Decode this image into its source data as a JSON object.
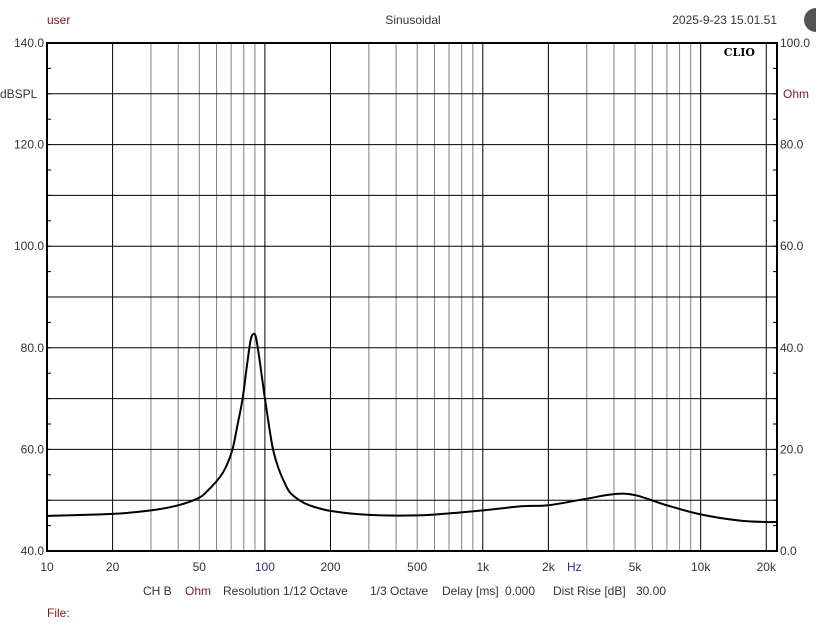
{
  "header": {
    "user": "user",
    "mode": "Sinusoidal",
    "datetime": "2025-9-23 15.01.51"
  },
  "logo": "CLIO",
  "footer": {
    "channel": "CH B",
    "unit": "Ohm",
    "resolution": "Resolution 1/12 Octave",
    "smoothing": "1/3 Octave",
    "delay_label": "Delay [ms]",
    "delay_value": "0.000",
    "dist_label": "Dist Rise [dB]",
    "dist_value": "30.00",
    "file_label": "File:"
  },
  "chart_data": {
    "type": "line",
    "title": "Sinusoidal",
    "xlabel": "Hz",
    "ylabel": "dBSPL",
    "y2label": "Ohm",
    "xscale": "log",
    "xlim": [
      10,
      22400
    ],
    "ylim": [
      40,
      140
    ],
    "y2lim": [
      0,
      100
    ],
    "grid": true,
    "x_ticks": [
      {
        "v": 10,
        "label": "10"
      },
      {
        "v": 20,
        "label": "20"
      },
      {
        "v": 50,
        "label": "50"
      },
      {
        "v": 100,
        "label": "100"
      },
      {
        "v": 200,
        "label": "200"
      },
      {
        "v": 500,
        "label": "500"
      },
      {
        "v": 1000,
        "label": "1k"
      },
      {
        "v": 2000,
        "label": "2k"
      },
      {
        "v": 5000,
        "label": "5k"
      },
      {
        "v": 10000,
        "label": "10k"
      },
      {
        "v": 20000,
        "label": "20k"
      }
    ],
    "y_ticks": [
      {
        "v": 140,
        "label": "140.0"
      },
      {
        "v": 120,
        "label": "120.0"
      },
      {
        "v": 100,
        "label": "100.0"
      },
      {
        "v": 80,
        "label": "80.0"
      },
      {
        "v": 60,
        "label": "60.0"
      },
      {
        "v": 40,
        "label": "40.0"
      }
    ],
    "y2_ticks": [
      {
        "v": 100,
        "label": "100.0"
      },
      {
        "v": 80,
        "label": "80.0"
      },
      {
        "v": 60,
        "label": "60.0"
      },
      {
        "v": 40,
        "label": "40.0"
      },
      {
        "v": 20,
        "label": "20.0"
      },
      {
        "v": 0,
        "label": "0.0"
      }
    ],
    "series": [
      {
        "name": "Impedance (Ohm)",
        "axis": "y2",
        "color": "#000000",
        "x": [
          10,
          20,
          30,
          40,
          50,
          55,
          62,
          67,
          71,
          75,
          79,
          83,
          86,
          88.5,
          91,
          95,
          100,
          105,
          109,
          115,
          122,
          130,
          144,
          160,
          200,
          300,
          500,
          700,
          1000,
          1500,
          2000,
          3000,
          4000,
          5000,
          7000,
          10000,
          15000,
          20000,
          22400
        ],
        "y": [
          6.9,
          7.3,
          8.0,
          9.0,
          10.5,
          12.0,
          14.5,
          17.0,
          20.0,
          25.0,
          30.0,
          37.0,
          41.5,
          42.7,
          42.0,
          37.0,
          30.0,
          24.0,
          20.0,
          16.5,
          13.8,
          11.6,
          10.0,
          9.0,
          7.9,
          7.1,
          7.0,
          7.4,
          8.0,
          8.8,
          9.0,
          10.3,
          11.2,
          11.0,
          9.0,
          7.2,
          6.0,
          5.7,
          5.7
        ]
      }
    ]
  }
}
